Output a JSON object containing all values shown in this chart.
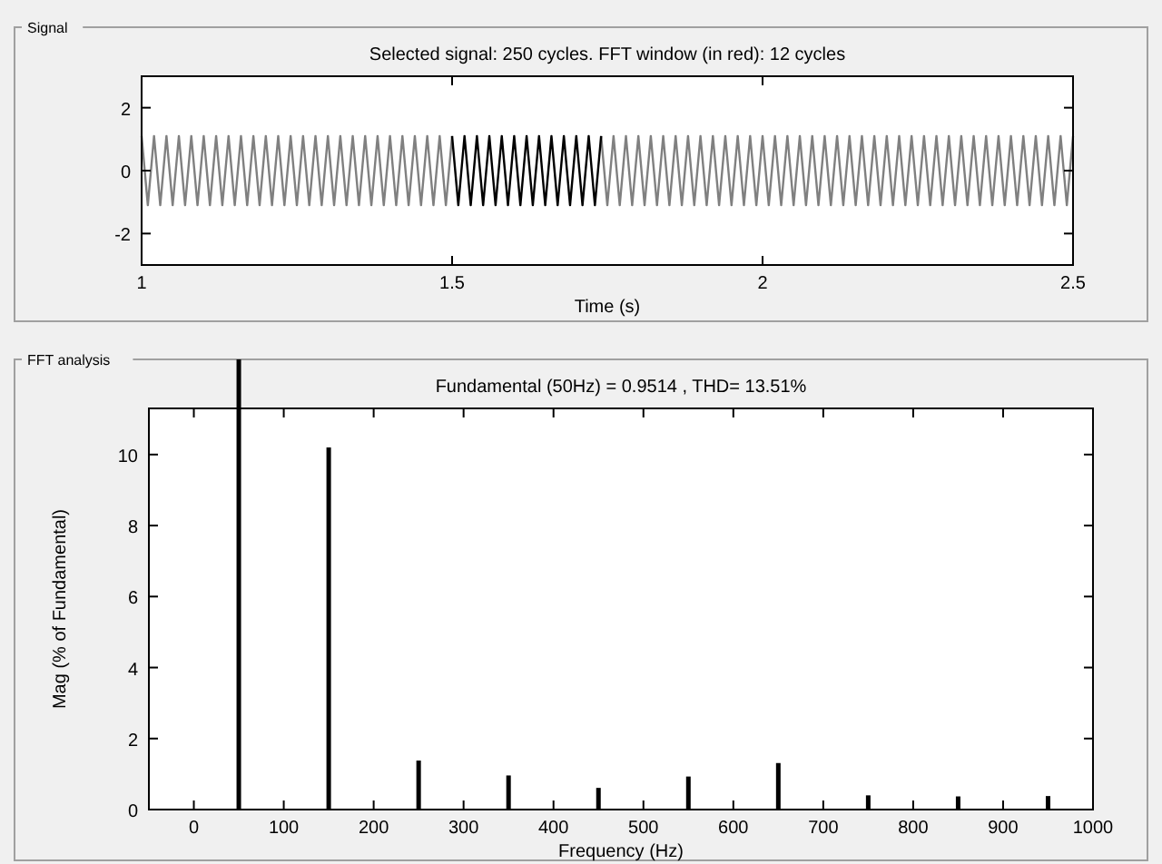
{
  "chart_data": [
    {
      "type": "line",
      "title": "Selected signal: 250 cycles. FFT window (in red): 12 cycles",
      "xlabel": "Time (s)",
      "annotations": [
        "Signal"
      ],
      "xlim": [
        1,
        2.5
      ],
      "xticks": [
        1,
        1.5,
        2,
        2.5
      ],
      "ylim": [
        -3,
        3
      ],
      "yticks": [
        -2,
        0,
        2
      ],
      "grid": false,
      "series": [
        {
          "color": "#808080",
          "x": [
            1,
            1.01,
            1.02,
            1.03,
            1.04,
            1.05,
            1.06,
            1.07,
            1.08,
            1.09,
            1.1,
            1.11,
            1.12,
            1.13,
            1.14,
            1.15,
            1.16,
            1.17,
            1.18,
            1.19,
            1.2,
            1.21,
            1.22,
            1.23,
            1.24,
            1.25,
            1.26,
            1.27,
            1.28,
            1.29,
            1.3,
            1.31,
            1.32,
            1.33,
            1.34,
            1.35,
            1.36,
            1.37,
            1.38,
            1.39,
            1.4,
            1.41,
            1.42,
            1.43,
            1.44,
            1.45,
            1.46,
            1.47,
            1.48,
            1.49,
            1.5,
            1.62,
            1.74,
            1.75,
            1.76,
            1.77,
            1.78,
            1.79,
            1.8,
            1.81,
            1.82,
            1.83,
            1.84,
            1.85,
            1.86,
            1.87,
            1.88,
            1.89,
            1.9,
            1.91,
            1.92,
            1.93,
            1.94,
            1.95,
            1.96,
            1.97,
            1.98,
            1.99,
            2,
            2.01,
            2.02,
            2.03,
            2.04,
            2.05,
            2.06,
            2.07,
            2.08,
            2.09,
            2.1,
            2.11,
            2.12,
            2.13,
            2.14,
            2.15,
            2.16,
            2.17,
            2.18,
            2.19,
            2.2,
            2.21,
            2.22,
            2.23,
            2.24,
            2.25,
            2.26,
            2.27,
            2.28,
            2.29,
            2.3,
            2.31,
            2.32,
            2.33,
            2.34,
            2.35,
            2.36,
            2.37,
            2.38,
            2.39,
            2.4,
            2.41,
            2.42,
            2.43,
            2.44,
            2.45,
            2.46,
            2.47,
            2.48,
            2.49,
            2.5
          ],
          "values": [
            1.1,
            -1.1,
            1.1,
            -1.1,
            1.1,
            -1.1,
            1.1,
            -1.1,
            1.1,
            -1.1,
            1.1,
            -1.1,
            1.1,
            -1.1,
            1.1,
            -1.1,
            1.1,
            -1.1,
            1.1,
            -1.1,
            1.1,
            -1.1,
            1.1,
            -1.1,
            1.1,
            -1.1,
            1.1,
            -1.1,
            1.1,
            -1.1,
            1.1,
            -1.1,
            1.1,
            -1.1,
            1.1,
            -1.1,
            1.1,
            -1.1,
            1.1,
            -1.1,
            1.1,
            -1.1,
            1.1,
            -1.1,
            1.1,
            -1.1,
            1.1,
            -1.1,
            1.1,
            -1.1,
            1.1,
            null,
            1.1,
            -1.1,
            1.1,
            -1.1,
            1.1,
            -1.1,
            1.1,
            -1.1,
            1.1,
            -1.1,
            1.1,
            -1.1,
            1.1,
            -1.1,
            1.1,
            -1.1,
            1.1,
            -1.1,
            1.1,
            -1.1,
            1.1,
            -1.1,
            1.1,
            -1.1,
            1.1,
            -1.1,
            1.1,
            -1.1,
            1.1,
            -1.1,
            1.1,
            -1.1,
            1.1,
            -1.1,
            1.1,
            -1.1,
            1.1,
            -1.1,
            1.1,
            -1.1,
            1.1,
            -1.1,
            1.1,
            -1.1,
            1.1,
            -1.1,
            1.1,
            -1.1,
            1.1,
            -1.1,
            1.1,
            -1.1,
            1.1,
            -1.1,
            1.1,
            -1.1,
            1.1,
            -1.1,
            1.1,
            -1.1,
            1.1,
            -1.1,
            1.1,
            -1.1,
            1.1,
            -1.1,
            1.1,
            -1.1,
            1.1,
            -1.1,
            1.1,
            -1.1,
            1.1,
            -1.1,
            1.1,
            -1.1,
            1.1
          ]
        },
        {
          "color": "#000000",
          "x": [
            1.5,
            1.51,
            1.52,
            1.53,
            1.54,
            1.55,
            1.56,
            1.57,
            1.58,
            1.59,
            1.6,
            1.61,
            1.62,
            1.63,
            1.64,
            1.65,
            1.66,
            1.67,
            1.68,
            1.69,
            1.7,
            1.71,
            1.72,
            1.73,
            1.74
          ],
          "values": [
            1.1,
            -1.1,
            1.1,
            -1.1,
            1.1,
            -1.1,
            1.1,
            -1.1,
            1.1,
            -1.1,
            1.1,
            -1.1,
            1.1,
            -1.1,
            1.1,
            -1.1,
            1.1,
            -1.1,
            1.1,
            -1.1,
            1.1,
            -1.1,
            1.1,
            -1.1,
            1.1
          ]
        }
      ]
    },
    {
      "type": "bar",
      "title": "Fundamental (50Hz) = 0.9514 , THD= 13.51%",
      "xlabel": "Frequency (Hz)",
      "ylabel": "Mag (% of Fundamental)",
      "annotations": [
        "FFT analysis"
      ],
      "xlim": [
        -50,
        1000
      ],
      "xticks": [
        0,
        100,
        200,
        300,
        400,
        500,
        600,
        700,
        800,
        900,
        1000
      ],
      "ylim": [
        0,
        11.3
      ],
      "yticks": [
        0,
        2,
        4,
        6,
        8,
        10
      ],
      "grid": false,
      "color": "#000000",
      "ref_lines": [
        {
          "axis": "x",
          "value": 50,
          "color": "#000000"
        }
      ],
      "x": [
        150,
        250,
        350,
        450,
        550,
        650,
        750,
        850,
        950
      ],
      "values": [
        10.2,
        1.38,
        0.96,
        0.61,
        0.93,
        1.31,
        0.4,
        0.37,
        0.38
      ]
    }
  ]
}
